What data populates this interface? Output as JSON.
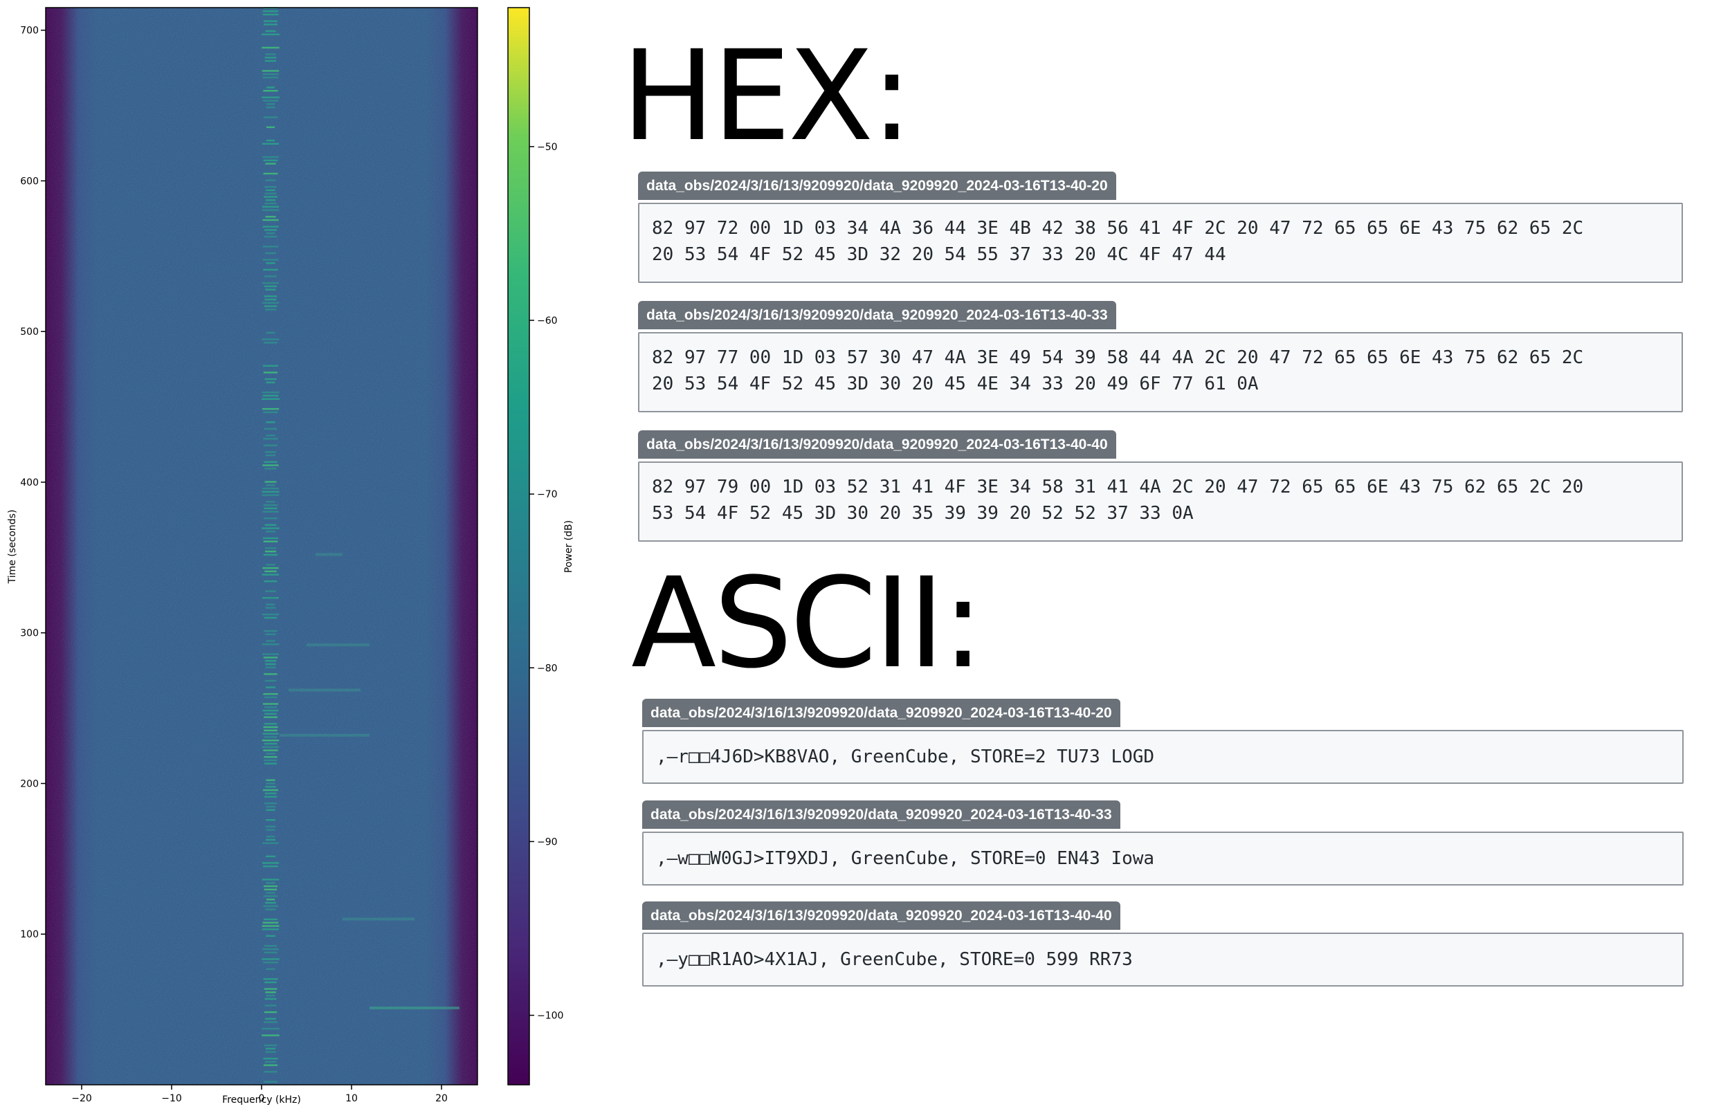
{
  "chart_data": {
    "type": "heatmap",
    "title": "",
    "xlabel": "Frequency (kHz)",
    "ylabel": "Time (seconds)",
    "xlim": [
      -24,
      24
    ],
    "ylim": [
      0,
      715
    ],
    "xticks": [
      -20,
      -10,
      0,
      10,
      20
    ],
    "yticks": [
      100,
      200,
      300,
      400,
      500,
      600,
      700
    ],
    "colorbar": {
      "label": "Power (dB)",
      "range": [
        -104,
        -42
      ],
      "ticks": [
        -50,
        -60,
        -70,
        -80,
        -90,
        -100
      ],
      "colormap": "viridis"
    },
    "band_edges_khz": [
      -21,
      21
    ],
    "background_power_db": -85,
    "edge_power_db": -103,
    "center_line_khz": 1,
    "signal_events": [
      {
        "time_s": 51,
        "freq_start_khz": 12,
        "freq_end_khz": 22,
        "power_db": -76
      },
      {
        "time_s": 110,
        "freq_start_khz": 9,
        "freq_end_khz": 17,
        "power_db": -81
      },
      {
        "time_s": 232,
        "freq_start_khz": 2,
        "freq_end_khz": 12,
        "power_db": -79
      },
      {
        "time_s": 262,
        "freq_start_khz": 3,
        "freq_end_khz": 11,
        "power_db": -83
      },
      {
        "time_s": 292,
        "freq_start_khz": 5,
        "freq_end_khz": 12,
        "power_db": -83
      },
      {
        "time_s": 352,
        "freq_start_khz": 6,
        "freq_end_khz": 9,
        "power_db": -84
      }
    ]
  },
  "hex": {
    "heading": "HEX:",
    "entries": [
      {
        "path": "data_obs/2024/3/16/13/9209920/data_9209920_2024-03-16T13-40-20",
        "text": "82 97 72 00 1D 03 34 4A 36 44 3E 4B 42 38 56 41 4F 2C 20 47 72 65 65 6E 43 75 62 65 2C\n20 53 54 4F 52 45 3D 32 20 54 55 37 33 20 4C 4F 47 44"
      },
      {
        "path": "data_obs/2024/3/16/13/9209920/data_9209920_2024-03-16T13-40-33",
        "text": "82 97 77 00 1D 03 57 30 47 4A 3E 49 54 39 58 44 4A 2C 20 47 72 65 65 6E 43 75 62 65 2C\n20 53 54 4F 52 45 3D 30 20 45 4E 34 33 20 49 6F 77 61 0A"
      },
      {
        "path": "data_obs/2024/3/16/13/9209920/data_9209920_2024-03-16T13-40-40",
        "text": "82 97 79 00 1D 03 52 31 41 4F 3E 34 58 31 41 4A 2C 20 47 72 65 65 6E 43 75 62 65 2C 20\n53 54 4F 52 45 3D 30 20 35 39 39 20 52 52 37 33 0A"
      }
    ]
  },
  "ascii": {
    "heading": "ASCII:",
    "entries": [
      {
        "path": "data_obs/2024/3/16/13/9209920/data_9209920_2024-03-16T13-40-20",
        "text": ",—r□□4J6D>KB8VAO, GreenCube, STORE=2 TU73 LOGD"
      },
      {
        "path": "data_obs/2024/3/16/13/9209920/data_9209920_2024-03-16T13-40-33",
        "text": ",—w□□W0GJ>IT9XDJ, GreenCube, STORE=0 EN43 Iowa"
      },
      {
        "path": "data_obs/2024/3/16/13/9209920/data_9209920_2024-03-16T13-40-40",
        "text": ",—y□□R1AO>4X1AJ, GreenCube, STORE=0 599 RR73"
      }
    ]
  }
}
